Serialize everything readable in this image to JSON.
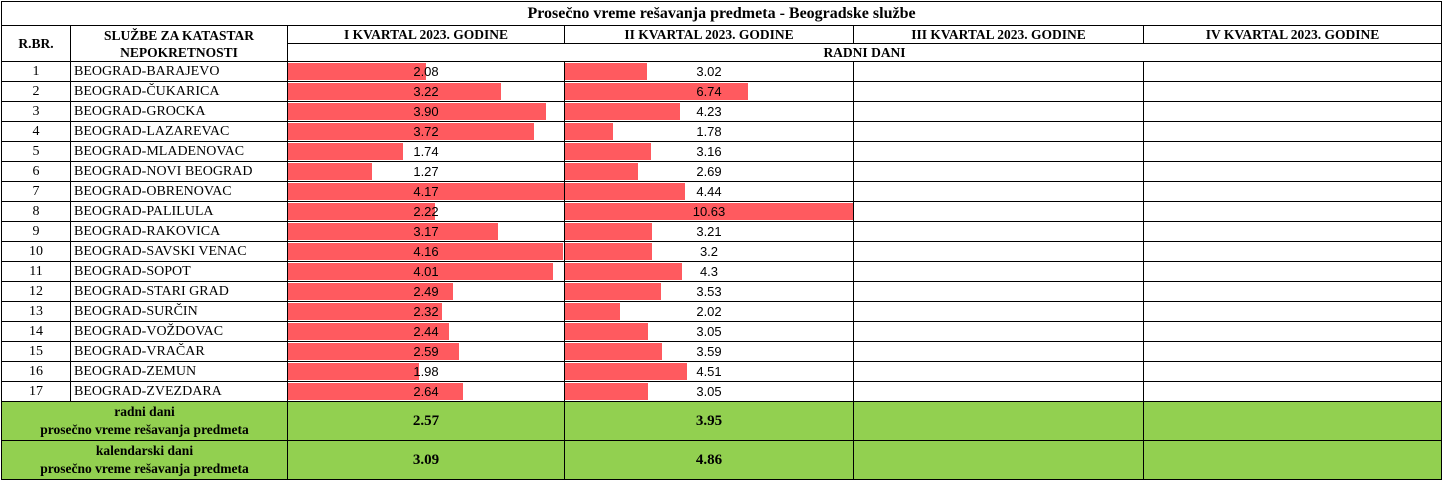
{
  "title": "Prosečno vreme rešavanja predmeta - Beogradske službe",
  "headers": {
    "rbr": "R.BR.",
    "service_line1": "SLUŽBE ZA KATASTAR",
    "service_line2": "NEPOKRETNOSTI",
    "q1": "I KVARTAL 2023. GODINE",
    "q2": "II KVARTAL 2023. GODINE",
    "q3": "III KVARTAL 2023. GODINE",
    "q4": "IV KVARTAL 2023. GODINE",
    "unit": "RADNI DANI"
  },
  "bar_color": "#ff5a5f",
  "summary_color": "#92d050",
  "bar_scale": {
    "q1_max": 4.17,
    "q2_max": 10.63
  },
  "rows": [
    {
      "rbr": "1",
      "name": "BEOGRAD-BARAJEVO",
      "q1": "2.08",
      "q2": "3.02"
    },
    {
      "rbr": "2",
      "name": "BEOGRAD-ČUKARICA",
      "q1": "3.22",
      "q2": "6.74"
    },
    {
      "rbr": "3",
      "name": "BEOGRAD-GROCKA",
      "q1": "3.90",
      "q2": "4.23"
    },
    {
      "rbr": "4",
      "name": "BEOGRAD-LAZAREVAC",
      "q1": "3.72",
      "q2": "1.78"
    },
    {
      "rbr": "5",
      "name": "BEOGRAD-MLADENOVAC",
      "q1": "1.74",
      "q2": "3.16"
    },
    {
      "rbr": "6",
      "name": "BEOGRAD-NOVI BEOGRAD",
      "q1": "1.27",
      "q2": "2.69"
    },
    {
      "rbr": "7",
      "name": "BEOGRAD-OBRENOVAC",
      "q1": "4.17",
      "q2": "4.44"
    },
    {
      "rbr": "8",
      "name": "BEOGRAD-PALILULA",
      "q1": "2.22",
      "q2": "10.63"
    },
    {
      "rbr": "9",
      "name": "BEOGRAD-RAKOVICA",
      "q1": "3.17",
      "q2": "3.21"
    },
    {
      "rbr": "10",
      "name": "BEOGRAD-SAVSKI VENAC",
      "q1": "4.16",
      "q2": "3.2"
    },
    {
      "rbr": "11",
      "name": "BEOGRAD-SOPOT",
      "q1": "4.01",
      "q2": "4.3"
    },
    {
      "rbr": "12",
      "name": "BEOGRAD-STARI GRAD",
      "q1": "2.49",
      "q2": "3.53"
    },
    {
      "rbr": "13",
      "name": "BEOGRAD-SURČIN",
      "q1": "2.32",
      "q2": "2.02"
    },
    {
      "rbr": "14",
      "name": "BEOGRAD-VOŽDOVAC",
      "q1": "2.44",
      "q2": "3.05"
    },
    {
      "rbr": "15",
      "name": "BEOGRAD-VRAČAR",
      "q1": "2.59",
      "q2": "3.59"
    },
    {
      "rbr": "16",
      "name": "BEOGRAD-ZEMUN",
      "q1": "1.98",
      "q2": "4.51"
    },
    {
      "rbr": "17",
      "name": "BEOGRAD-ZVEZDARA",
      "q1": "2.64",
      "q2": "3.05"
    }
  ],
  "summary": [
    {
      "label_line1": "radni dani",
      "label_line2": "prosečno vreme rešavanja predmeta",
      "q1": "2.57",
      "q2": "3.95"
    },
    {
      "label_line1": "kalendarski dani",
      "label_line2": "prosečno vreme rešavanja predmeta",
      "q1": "3.09",
      "q2": "4.86"
    }
  ]
}
